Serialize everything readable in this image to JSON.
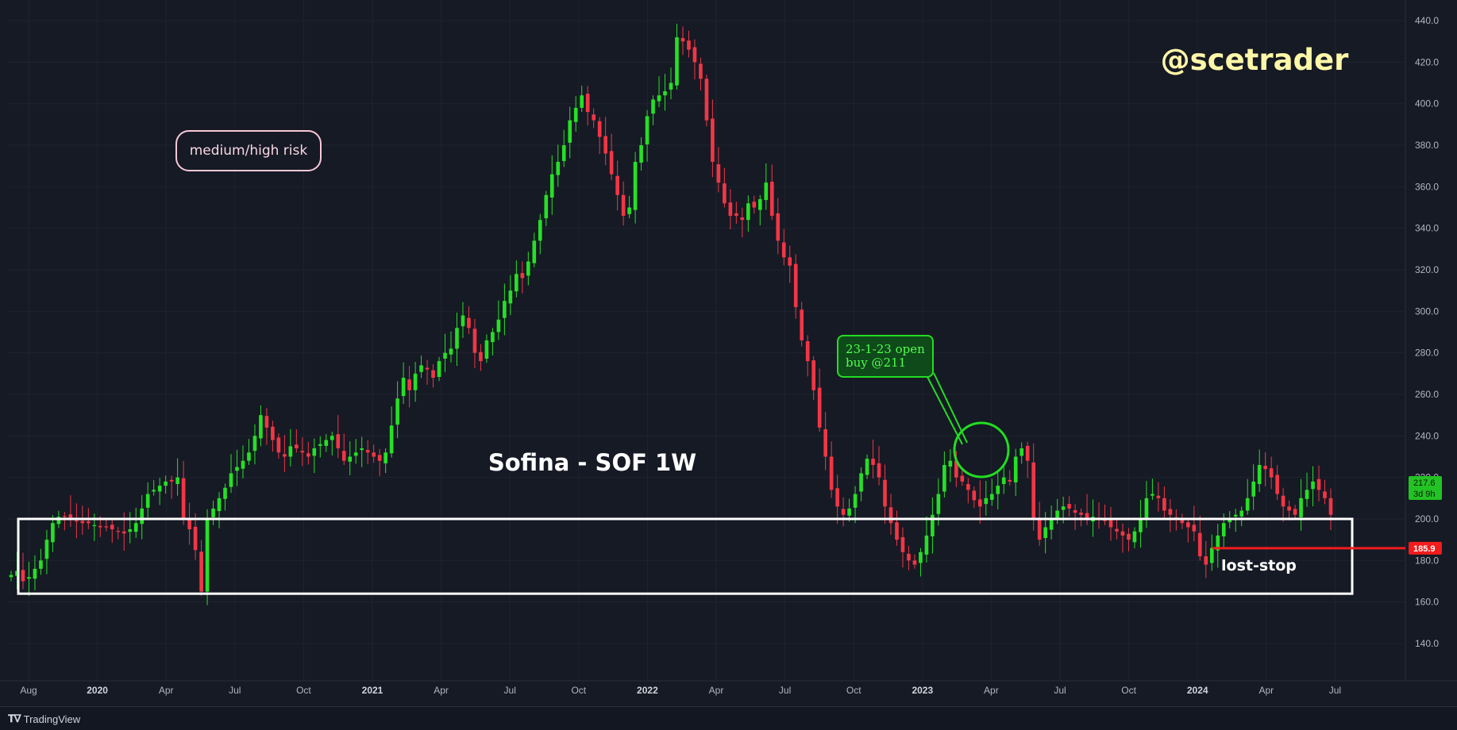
{
  "chart_data": {
    "type": "candlestick",
    "title": "Sofina - SOF 1W",
    "watermark": "@scetrader",
    "ylim": [
      130,
      445
    ],
    "y_ticks": [
      "440.0",
      "420.0",
      "400.0",
      "380.0",
      "360.0",
      "340.0",
      "320.0",
      "300.0",
      "280.0",
      "260.0",
      "240.0",
      "220.0",
      "200.0",
      "180.0",
      "160.0",
      "140.0"
    ],
    "x_ticks": [
      {
        "label": "Aug",
        "bold": false
      },
      {
        "label": "2020",
        "bold": true
      },
      {
        "label": "Apr",
        "bold": false
      },
      {
        "label": "Jul",
        "bold": false
      },
      {
        "label": "Oct",
        "bold": false
      },
      {
        "label": "2021",
        "bold": true
      },
      {
        "label": "Apr",
        "bold": false
      },
      {
        "label": "Jul",
        "bold": false
      },
      {
        "label": "Oct",
        "bold": false
      },
      {
        "label": "2022",
        "bold": true
      },
      {
        "label": "Apr",
        "bold": false
      },
      {
        "label": "Jul",
        "bold": false
      },
      {
        "label": "Oct",
        "bold": false
      },
      {
        "label": "2023",
        "bold": true
      },
      {
        "label": "Apr",
        "bold": false
      },
      {
        "label": "Jul",
        "bold": false
      },
      {
        "label": "Oct",
        "bold": false
      },
      {
        "label": "2024",
        "bold": true
      },
      {
        "label": "Apr",
        "bold": false
      },
      {
        "label": "Jul",
        "bold": false
      }
    ],
    "closes": [
      173,
      175,
      170,
      172,
      176,
      180,
      190,
      198,
      201,
      201,
      200,
      199,
      198,
      198,
      197,
      196,
      196,
      195,
      194,
      193,
      195,
      198,
      205,
      212,
      214,
      216,
      218,
      218,
      220,
      200,
      195,
      185,
      165,
      200,
      205,
      210,
      215,
      222,
      225,
      228,
      232,
      240,
      250,
      244,
      238,
      232,
      230,
      235,
      234,
      232,
      230,
      234,
      236,
      238,
      240,
      234,
      228,
      230,
      232,
      234,
      232,
      230,
      228,
      232,
      245,
      258,
      268,
      262,
      270,
      274,
      272,
      268,
      276,
      280,
      282,
      292,
      298,
      292,
      280,
      276,
      286,
      290,
      296,
      305,
      310,
      318,
      316,
      324,
      334,
      344,
      356,
      366,
      372,
      380,
      392,
      398,
      404,
      396,
      392,
      384,
      376,
      366,
      356,
      346,
      350,
      372,
      380,
      394,
      402,
      404,
      406,
      410,
      432,
      430,
      426,
      420,
      412,
      392,
      372,
      362,
      352,
      346,
      346,
      344,
      352,
      350,
      354,
      362,
      346,
      334,
      326,
      322,
      302,
      286,
      276,
      262,
      244,
      230,
      214,
      206,
      202,
      205,
      212,
      222,
      229,
      226,
      220,
      206,
      198,
      190,
      184,
      180,
      178,
      184,
      192,
      202,
      212,
      226,
      228,
      220,
      218,
      214,
      209,
      206,
      210,
      212,
      216,
      220,
      218,
      230,
      234,
      228,
      200,
      190,
      196,
      200,
      204,
      206,
      205,
      203,
      202,
      200,
      201,
      200,
      199,
      196,
      194,
      192,
      190,
      194,
      200,
      210,
      212,
      210,
      204,
      202,
      200,
      198,
      196,
      194,
      182,
      178,
      186,
      192,
      198,
      200,
      202,
      204,
      210,
      218,
      226,
      224,
      220,
      212,
      206,
      204,
      202,
      210,
      214,
      218,
      214,
      210,
      202
    ],
    "price_tag": "217.6",
    "price_tag_time": "3d 9h",
    "stop_value": 185.9,
    "stop_tag": "185.9",
    "support_zone": [
      164,
      200
    ],
    "annotations": {
      "risk": "medium/high risk",
      "entry_line1": "23-1-23 open",
      "entry_line2": "buy @211",
      "lost_stop": "lost-stop"
    },
    "colors": {
      "up": "#26e026",
      "down": "#f23645",
      "background": "#161a25",
      "entry": "#22dd22",
      "stop": "#f21c1c",
      "watermark": "#fff7a8",
      "risk_border": "#f8c8d8"
    }
  },
  "footer": {
    "brand": "TradingView"
  }
}
